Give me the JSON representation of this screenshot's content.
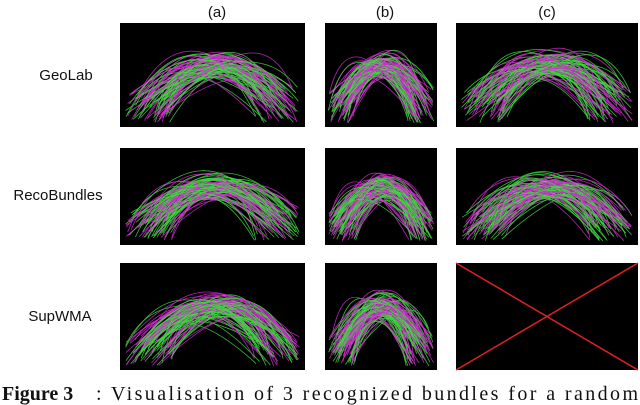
{
  "columns": [
    "(a)",
    "(b)",
    "(c)"
  ],
  "rows": [
    "GeoLab",
    "RecoBundles",
    "SupWMA"
  ],
  "caption": {
    "label": "Figure 3",
    "text": ": Visualisation of 3 recognized bundles for a random"
  }
}
